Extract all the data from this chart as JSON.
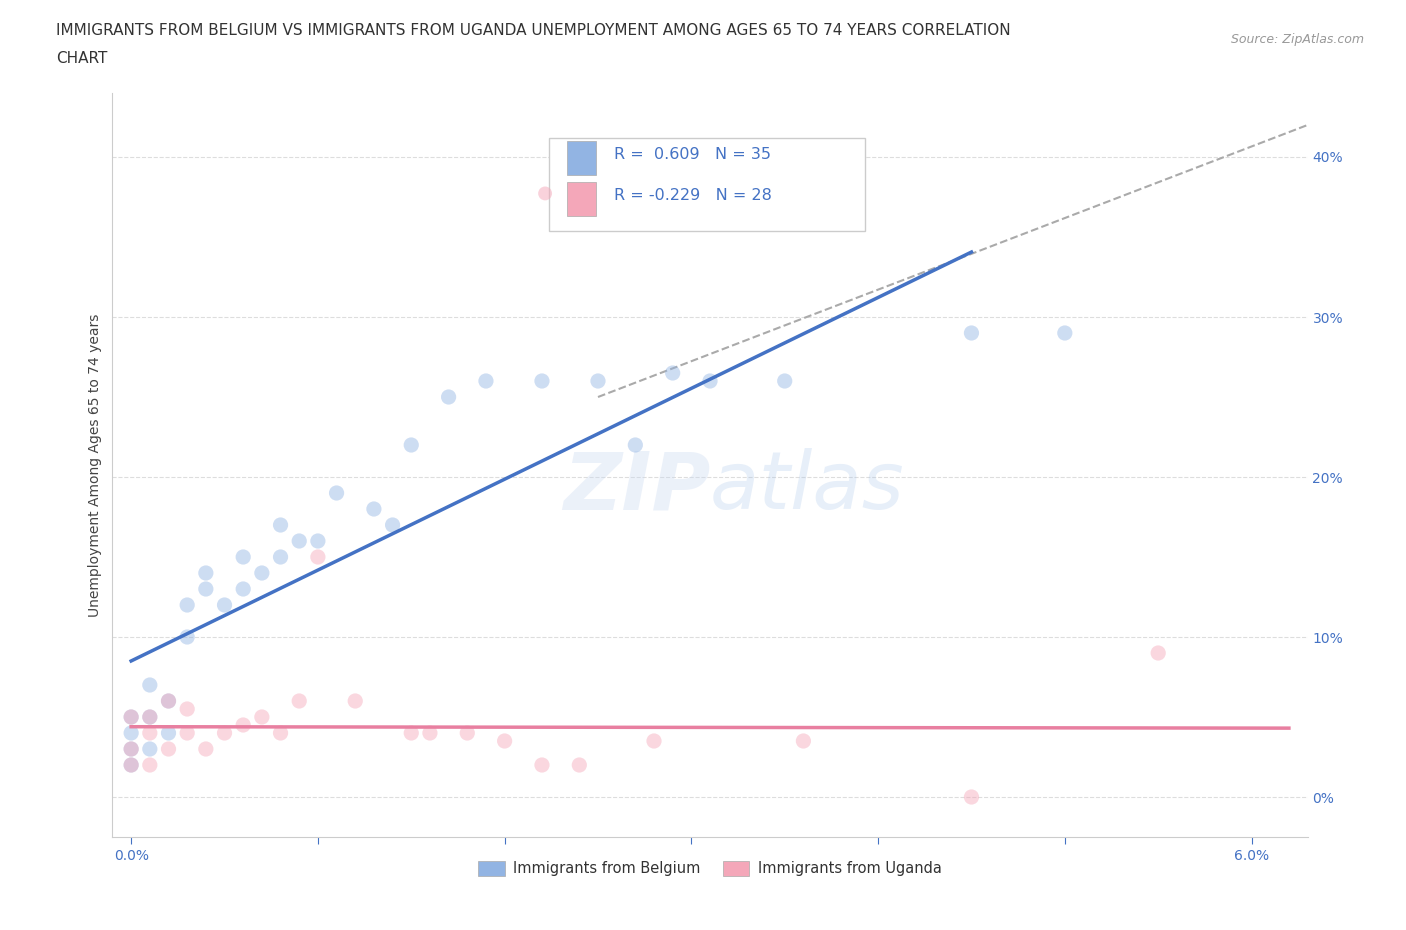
{
  "title_line1": "IMMIGRANTS FROM BELGIUM VS IMMIGRANTS FROM UGANDA UNEMPLOYMENT AMONG AGES 65 TO 74 YEARS CORRELATION",
  "title_line2": "CHART",
  "source_text": "Source: ZipAtlas.com",
  "ylabel": "Unemployment Among Ages 65 to 74 years",
  "watermark": "ZIPatlas",
  "belgium_color": "#92b4e3",
  "uganda_color": "#f4a7b9",
  "belgium_line_color": "#4472c4",
  "uganda_line_color": "#e87fa0",
  "diagonal_color": "#aaaaaa",
  "R_belgium": 0.609,
  "N_belgium": 35,
  "R_uganda": -0.229,
  "N_uganda": 28,
  "xlim": [
    -0.001,
    0.063
  ],
  "ylim": [
    -0.025,
    0.44
  ],
  "xticks": [
    0.0,
    0.01,
    0.02,
    0.03,
    0.04,
    0.05,
    0.06
  ],
  "yticks": [
    0.0,
    0.1,
    0.2,
    0.3,
    0.4
  ],
  "belgium_x": [
    0.0,
    0.0,
    0.0,
    0.0,
    0.001,
    0.001,
    0.001,
    0.002,
    0.002,
    0.003,
    0.003,
    0.004,
    0.004,
    0.005,
    0.006,
    0.006,
    0.007,
    0.008,
    0.008,
    0.009,
    0.01,
    0.011,
    0.013,
    0.014,
    0.015,
    0.017,
    0.019,
    0.022,
    0.025,
    0.027,
    0.029,
    0.031,
    0.035,
    0.045,
    0.05
  ],
  "belgium_y": [
    0.02,
    0.03,
    0.04,
    0.05,
    0.03,
    0.05,
    0.07,
    0.04,
    0.06,
    0.1,
    0.12,
    0.13,
    0.14,
    0.12,
    0.13,
    0.15,
    0.14,
    0.15,
    0.17,
    0.16,
    0.16,
    0.19,
    0.18,
    0.17,
    0.22,
    0.25,
    0.26,
    0.26,
    0.26,
    0.22,
    0.265,
    0.26,
    0.26,
    0.29,
    0.29
  ],
  "uganda_x": [
    0.0,
    0.0,
    0.0,
    0.001,
    0.001,
    0.001,
    0.002,
    0.002,
    0.003,
    0.003,
    0.004,
    0.005,
    0.006,
    0.007,
    0.008,
    0.009,
    0.01,
    0.012,
    0.015,
    0.016,
    0.018,
    0.02,
    0.022,
    0.024,
    0.028,
    0.036,
    0.045,
    0.055
  ],
  "uganda_y": [
    0.02,
    0.03,
    0.05,
    0.02,
    0.04,
    0.05,
    0.03,
    0.06,
    0.04,
    0.055,
    0.03,
    0.04,
    0.045,
    0.05,
    0.04,
    0.06,
    0.15,
    0.06,
    0.04,
    0.04,
    0.04,
    0.035,
    0.02,
    0.02,
    0.035,
    0.035,
    0.0,
    0.09
  ],
  "legend_label_belgium": "Immigrants from Belgium",
  "legend_label_uganda": "Immigrants from Uganda",
  "grid_color": "#dddddd",
  "background_color": "#ffffff",
  "title_fontsize": 11,
  "axis_label_fontsize": 10,
  "tick_fontsize": 10,
  "marker_size": 120,
  "marker_alpha": 0.45,
  "tick_color": "#4472c4"
}
